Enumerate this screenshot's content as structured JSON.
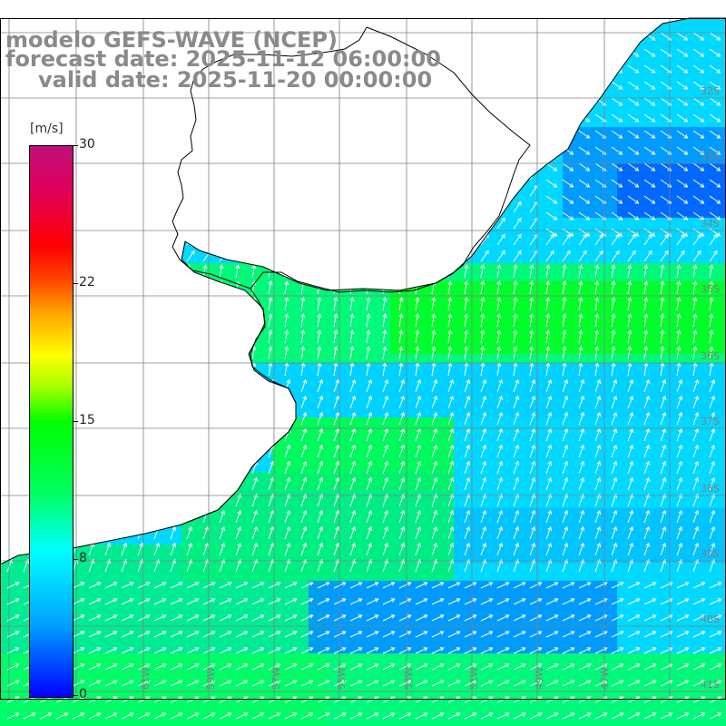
{
  "header": {
    "model_line": "modelo GEFS-WAVE (NCEP)",
    "forecast_line": "forecast date: 2025-11-12 06:00:00",
    "valid_line": "valid date: 2025-11-20 00:00:00"
  },
  "colorbar": {
    "unit": "[m/s]",
    "ticks": [
      "30",
      "22",
      "15",
      "8",
      "0"
    ],
    "range": [
      0,
      30
    ],
    "colors": [
      "#0000ff",
      "#00a0ff",
      "#00ffff",
      "#00ff00",
      "#ffff00",
      "#ff0000",
      "#c0107a"
    ]
  },
  "map": {
    "variable": "wind speed and direction",
    "land_color": "#ffffff",
    "coastline_color": "#000000",
    "grid_color": "#808080",
    "lon_labels": [
      "61W",
      "59W",
      "57W",
      "55W",
      "53W",
      "51W",
      "49W",
      "47W"
    ],
    "lat_labels": [
      "32S",
      "33S",
      "34S",
      "35S",
      "36S",
      "37S",
      "38S",
      "39S",
      "40S",
      "41S"
    ],
    "ocean_field_colors": [
      "#00d8ff",
      "#00ff80",
      "#0090ff",
      "#00ff30"
    ]
  }
}
